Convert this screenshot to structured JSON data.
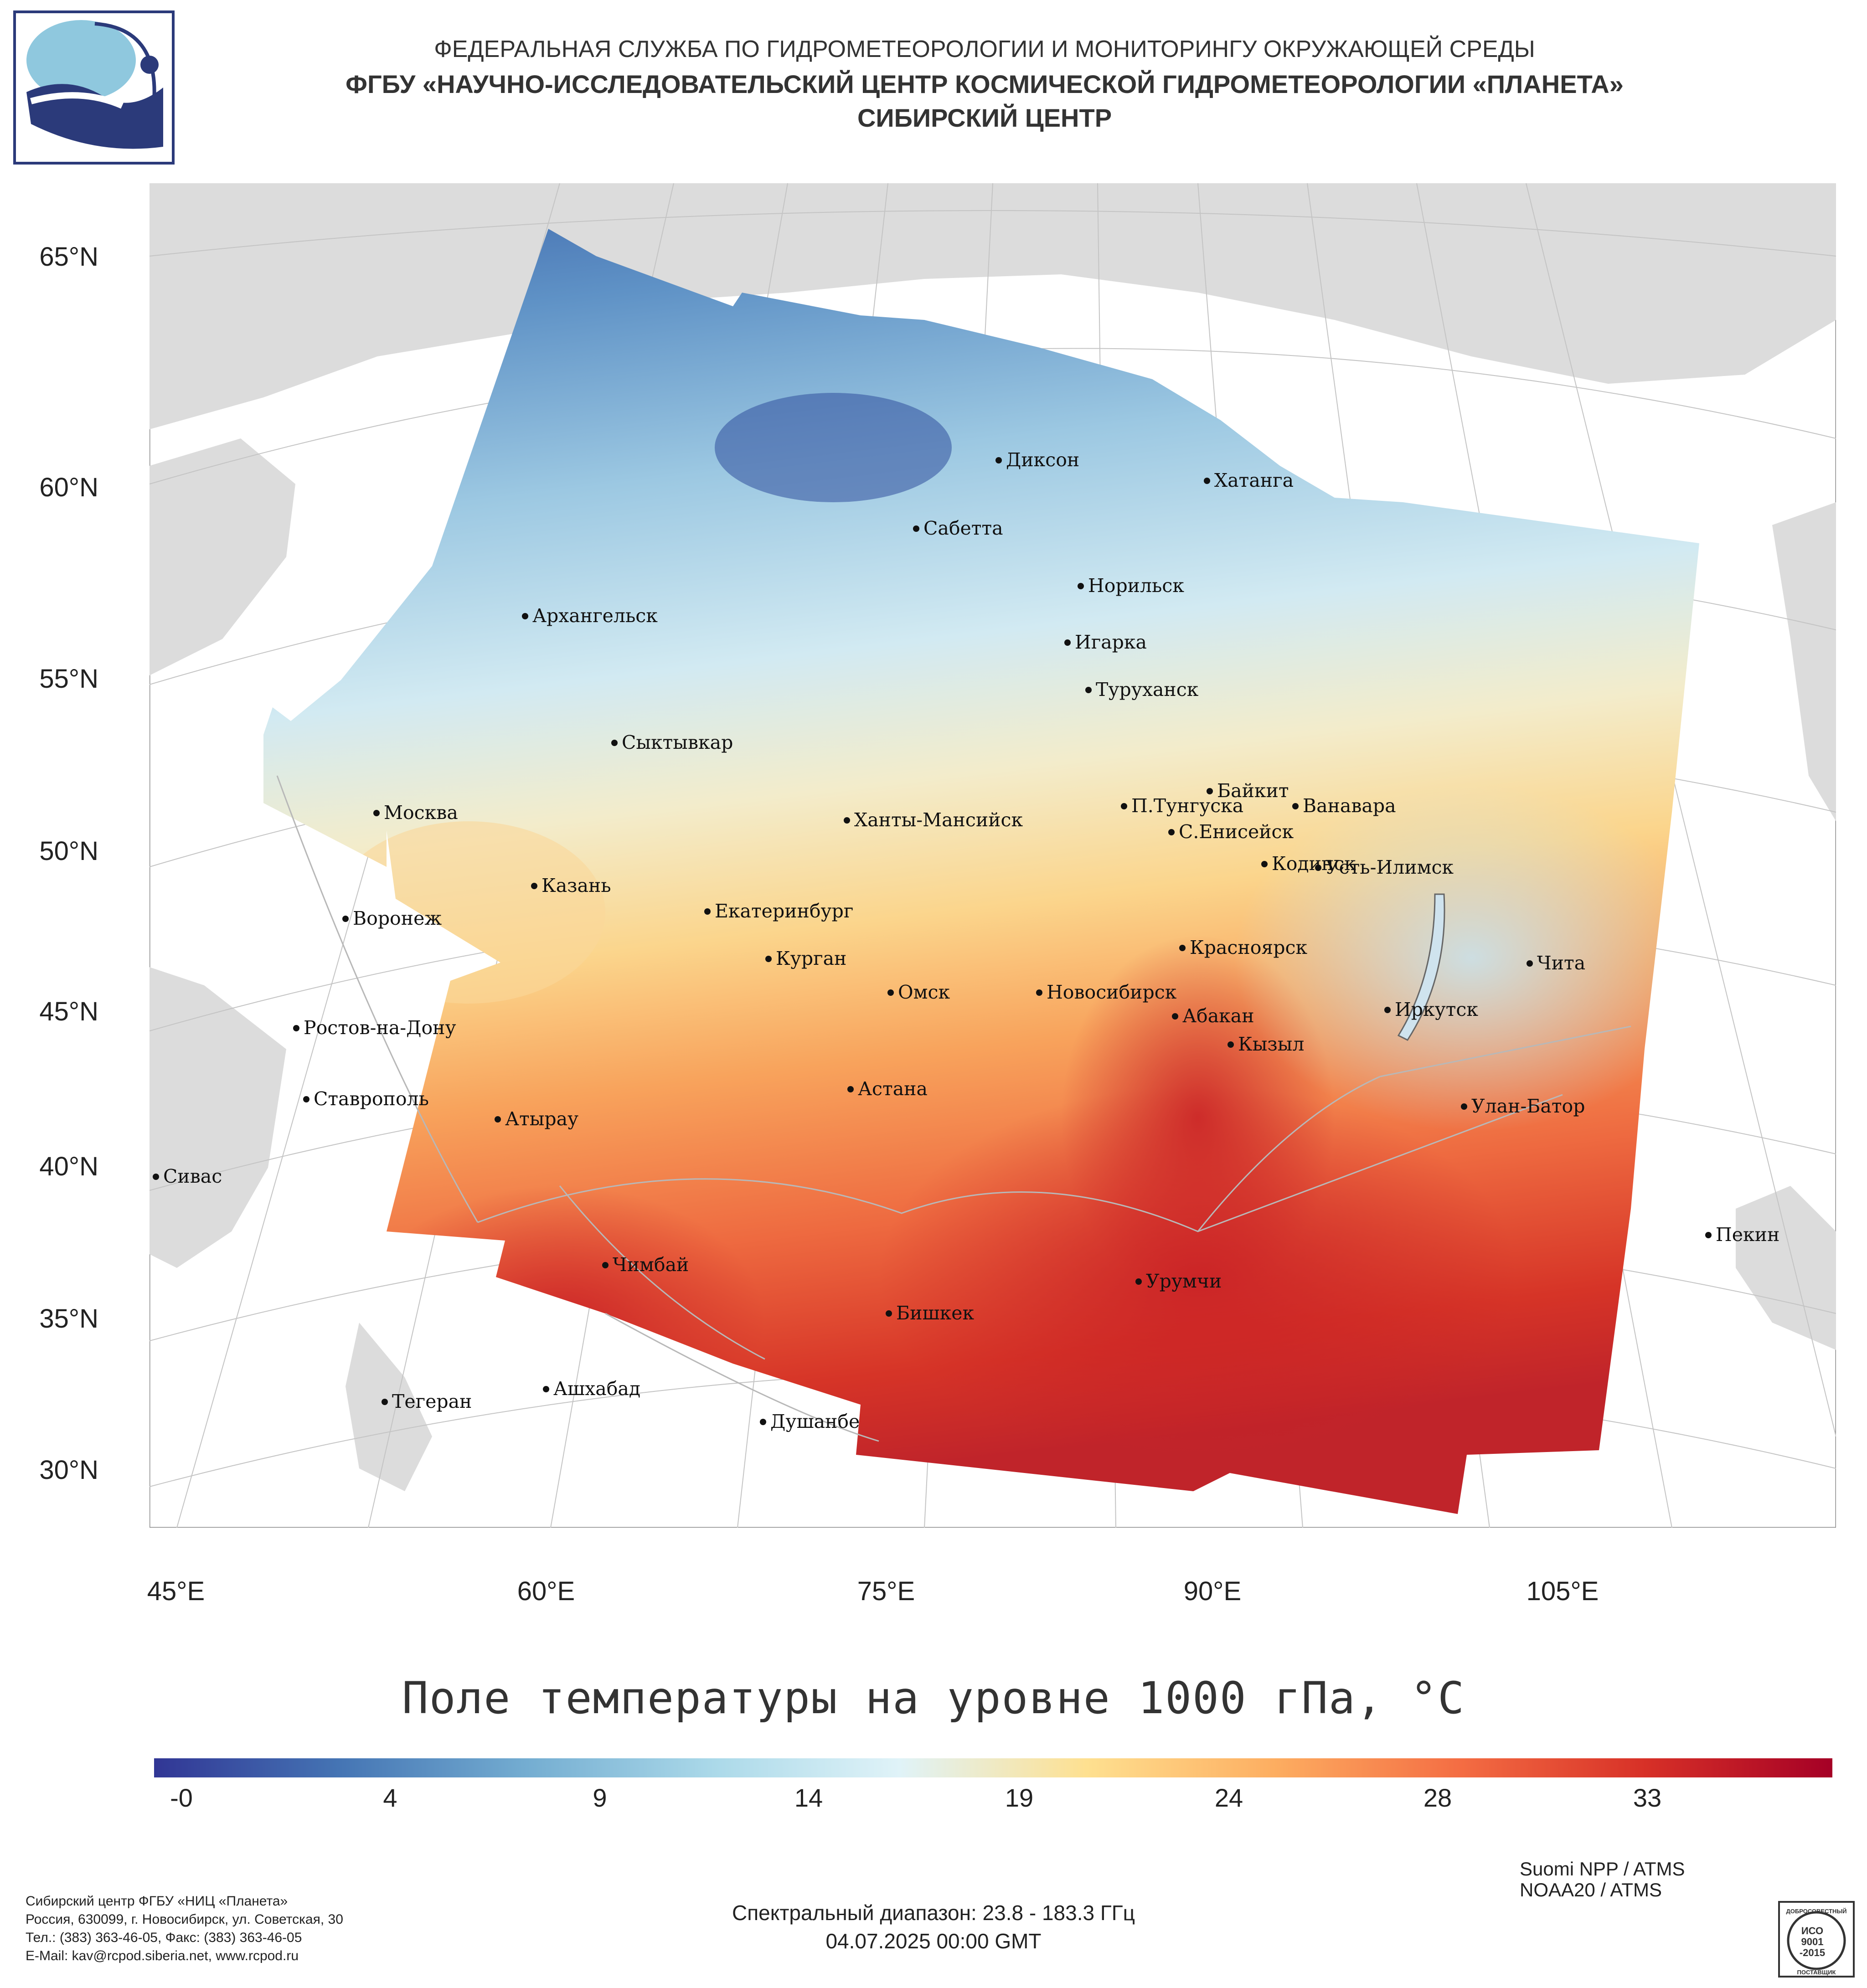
{
  "header": {
    "line1": "ФЕДЕРАЛЬНАЯ СЛУЖБА ПО ГИДРОМЕТЕОРОЛОГИИ И МОНИТОРИНГУ ОКРУЖАЮЩЕЙ СРЕДЫ",
    "line2": "ФГБУ «НАУЧНО-ИССЛЕДОВАТЕЛЬСКИЙ ЦЕНТР КОСМИЧЕСКОЙ ГИДРОМЕТЕОРОЛОГИИ «ПЛАНЕТА»",
    "line3": "СИБИРСКИЙ ЦЕНТР"
  },
  "logo": {
    "icon": "planeta-logo"
  },
  "map": {
    "lat_labels": [
      "65°N",
      "60°N",
      "55°N",
      "50°N",
      "45°N",
      "40°N",
      "35°N",
      "30°N"
    ],
    "lon_labels": [
      "45°E",
      "60°E",
      "75°E",
      "90°E",
      "105°E"
    ],
    "land_color": "#dcdcdc",
    "border_color": "#b8b8b8",
    "cities": [
      {
        "name": "Диксон"
      },
      {
        "name": "Хатанга"
      },
      {
        "name": "Сабетта"
      },
      {
        "name": "Норильск"
      },
      {
        "name": "Архангельск"
      },
      {
        "name": "Игарка"
      },
      {
        "name": "Туруханск"
      },
      {
        "name": "Сыктывкар"
      },
      {
        "name": "Байкит"
      },
      {
        "name": "П.Тунгуска"
      },
      {
        "name": "Ванавара"
      },
      {
        "name": "Москва"
      },
      {
        "name": "Ханты-Мансийск"
      },
      {
        "name": "С.Енисейск"
      },
      {
        "name": "Кодинск"
      },
      {
        "name": "Усть-Илимск"
      },
      {
        "name": "Казань"
      },
      {
        "name": "Екатеринбург"
      },
      {
        "name": "Воронеж"
      },
      {
        "name": "Красноярск"
      },
      {
        "name": "Курган"
      },
      {
        "name": "Чита"
      },
      {
        "name": "Омск"
      },
      {
        "name": "Новосибирск"
      },
      {
        "name": "Иркутск"
      },
      {
        "name": "Абакан"
      },
      {
        "name": "Ростов-на-Дону"
      },
      {
        "name": "Кызыл"
      },
      {
        "name": "Астана"
      },
      {
        "name": "Ставрополь"
      },
      {
        "name": "Улан-Батор"
      },
      {
        "name": "Атырау"
      },
      {
        "name": "Сивас"
      },
      {
        "name": "Пекин"
      },
      {
        "name": "Чимбай"
      },
      {
        "name": "Урумчи"
      },
      {
        "name": "Бишкек"
      },
      {
        "name": "Ашхабад"
      },
      {
        "name": "Тегеран"
      },
      {
        "name": "Душанбе"
      }
    ]
  },
  "title": "Поле температуры на уровне 1000 гПа, °C",
  "colorbar": {
    "min": -2,
    "max": 37,
    "tick_labels": [
      "-0",
      "4",
      "9",
      "14",
      "19",
      "24",
      "28",
      "33"
    ],
    "colors": [
      "#313695",
      "#4575b4",
      "#74add1",
      "#abd9e9",
      "#e0f3f8",
      "#fee090",
      "#fdae61",
      "#f46d43",
      "#d73027",
      "#a50026"
    ]
  },
  "footer": {
    "org_lines": [
      "Сибирский центр ФГБУ «НИЦ «Планета»",
      "Россия, 630099, г. Новосибирск, ул. Советская, 30",
      "Тел.: (383) 363-46-05, Факс: (383) 363-46-05",
      "E-Mail: kav@rcpod.siberia.net, www.rcpod.ru"
    ],
    "satellites": [
      "Suomi NPP / ATMS",
      "NOAA20 / ATMS"
    ],
    "spectral": "Спектральный диапазон: 23.8 - 183.3 ГГц",
    "date": "04.07.2025 00:00 GMT",
    "iso_badge": {
      "top": "ДОБРОСОВЕСТНЫЙ",
      "l1": "ИСО",
      "l2": "9001",
      "l3": "-2015",
      "bottom": "ПОСТАВЩИК"
    }
  }
}
